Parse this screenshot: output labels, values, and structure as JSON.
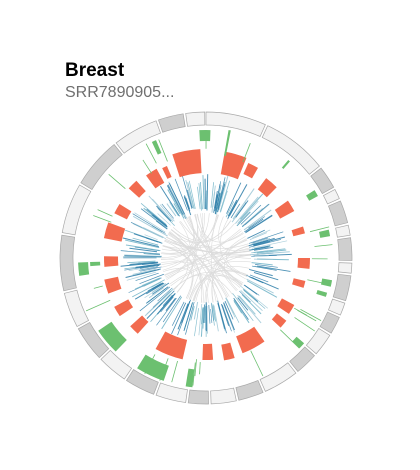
{
  "sample": {
    "title": "Breast",
    "subtitle": "SRR7890905..."
  },
  "colors": {
    "cnv_gain": "#f26b4f",
    "expression_high": "#6cc070",
    "fusion_link": "#2b7ca8",
    "ideogram_dark": "#cfcfcf",
    "ideogram_light": "#f3f3f3",
    "outline": "#a8a8a8",
    "inner_link": "#dcdcdc"
  }
}
